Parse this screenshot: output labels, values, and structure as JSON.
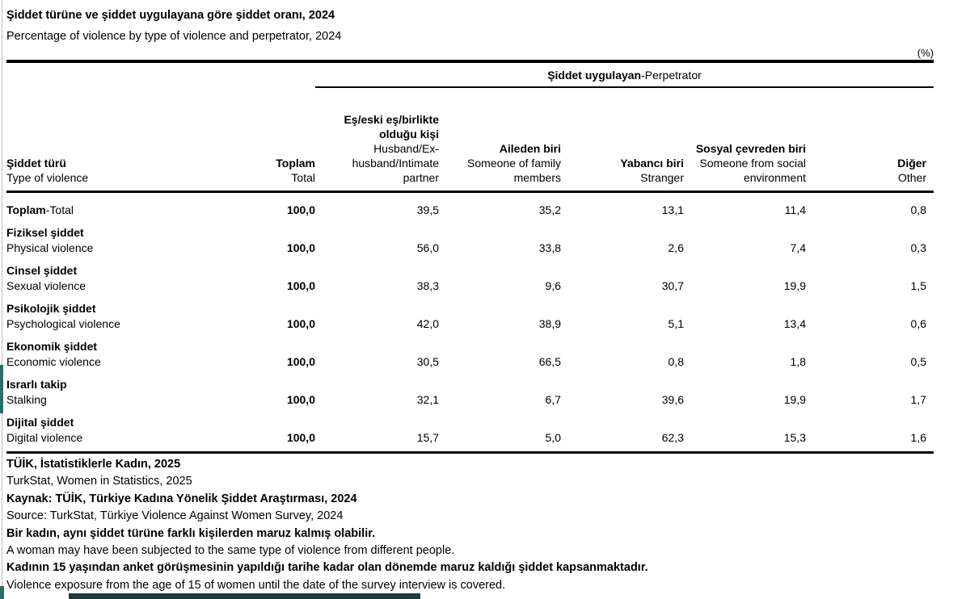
{
  "header": {
    "title_tr": "Şiddet türüne ve şiddet uygulayana göre şiddet oranı, 2024",
    "title_en": "Percentage of violence by type of violence and perpetrator, 2024",
    "unit_label": "(%)"
  },
  "table": {
    "group_header_tr": "Şiddet uygulayan",
    "group_header_en": "-Perpetrator",
    "row_header_tr": "Şiddet türü",
    "row_header_en": "Type of violence",
    "columns": [
      {
        "tr": "Toplam",
        "en": "Total"
      },
      {
        "tr": "Eş/eski eş/birlikte\nolduğu kişi",
        "en": "Husband/Ex-\nhusband/Intimate\npartner"
      },
      {
        "tr": "Aileden biri",
        "en": "Someone of family\nmembers"
      },
      {
        "tr": "Yabancı biri",
        "en": "Stranger"
      },
      {
        "tr": "Sosyal çevreden biri",
        "en": "Someone from social\nenvironment"
      },
      {
        "tr": "Diğer",
        "en": "Other"
      }
    ],
    "rows": [
      {
        "tr": "Toplam",
        "en": "-Total",
        "total": "100,0",
        "values": [
          "39,5",
          "35,2",
          "13,1",
          "11,4",
          "0,8"
        ]
      },
      {
        "tr": "Fiziksel şiddet",
        "en": "Physical violence",
        "total": "100,0",
        "values": [
          "56,0",
          "33,8",
          "2,6",
          "7,4",
          "0,3"
        ]
      },
      {
        "tr": "Cinsel şiddet",
        "en": "Sexual violence",
        "total": "100,0",
        "values": [
          "38,3",
          "9,6",
          "30,7",
          "19,9",
          "1,5"
        ]
      },
      {
        "tr": "Psikolojik şiddet",
        "en": "Psychological violence",
        "total": "100,0",
        "values": [
          "42,0",
          "38,9",
          "5,1",
          "13,4",
          "0,6"
        ]
      },
      {
        "tr": "Ekonomik şiddet",
        "en": "Economic violence",
        "total": "100,0",
        "values": [
          "30,5",
          "66,5",
          "0,8",
          "1,8",
          "0,5"
        ]
      },
      {
        "tr": "Israrlı takip",
        "en": "Stalking",
        "total": "100,0",
        "values": [
          "32,1",
          "6,7",
          "39,6",
          "19,9",
          "1,7"
        ]
      },
      {
        "tr": "Dijital şiddet",
        "en": "Digital violence",
        "total": "100,0",
        "values": [
          "15,7",
          "5,0",
          "62,3",
          "15,3",
          "1,6"
        ]
      }
    ]
  },
  "footnotes": [
    {
      "text": "TÜİK, İstatistiklerle Kadın, 2025"
    },
    {
      "text": "TurkStat, Women in Statistics, 2025"
    },
    {
      "text": "Kaynak: TÜİK, Türkiye Kadına Yönelik Şiddet Araştırması, 2024"
    },
    {
      "text": "Source: TurkStat, Türkiye Violence Against Women Survey, 2024"
    },
    {
      "text": "Bir kadın, aynı şiddet türüne farklı kişilerden maruz kalmış olabilir."
    },
    {
      "text": "A woman may have been subjected to the same type of violence from different people."
    },
    {
      "text": "Kadının 15 yaşından anket görüşmesinin yapıldığı tarihe kadar olan dönemde maruz kaldığı şiddet kapsanmaktadır."
    },
    {
      "text": "Violence exposure from the age of 15 of women until the date of the survey interview is covered."
    }
  ],
  "colors": {
    "rule": "#000000",
    "hairline": "#bdbdbd",
    "accent": "#2f6c63",
    "bar": "#1b3a38"
  }
}
